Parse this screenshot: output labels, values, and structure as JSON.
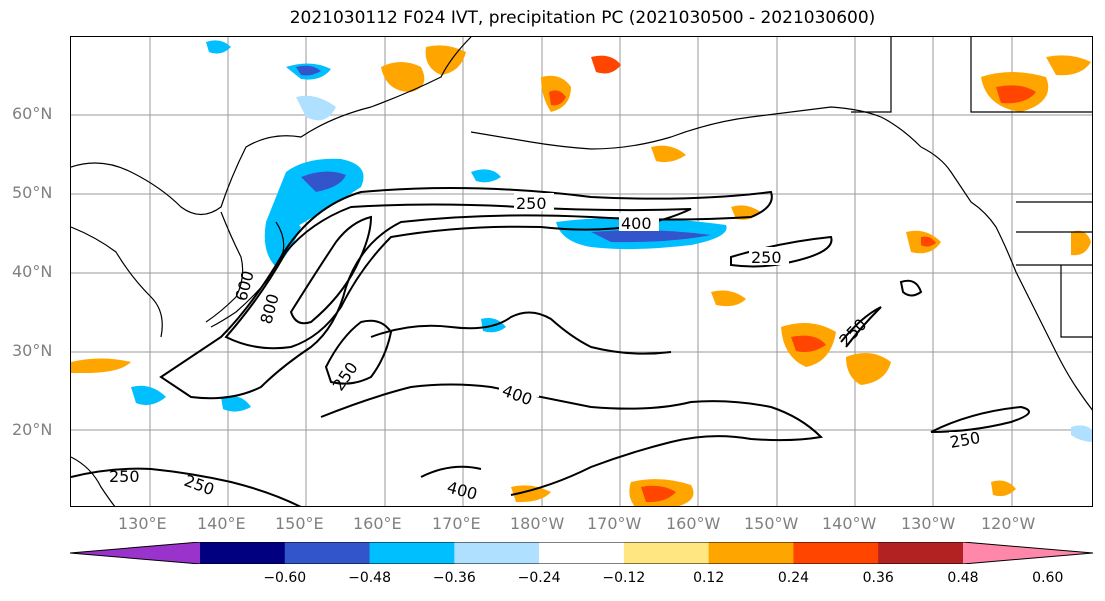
{
  "title": "2021030112 F024 IVT, precipitation PC (2021030500 - 2021030600)",
  "lat_labels": [
    "60°N",
    "50°N",
    "40°N",
    "30°N",
    "20°N"
  ],
  "lon_labels": [
    "130°E",
    "140°E",
    "150°E",
    "160°E",
    "170°E",
    "180°W",
    "170°W",
    "160°W",
    "150°W",
    "140°W",
    "130°W",
    "120°W"
  ],
  "contour_labels": [
    "250",
    "400",
    "250",
    "250",
    "400",
    "250",
    "250",
    "250",
    "400",
    "250",
    "600",
    "800"
  ],
  "colorbar": {
    "ticks": [
      "−0.60",
      "−0.48",
      "−0.36",
      "−0.24",
      "−0.12",
      "0.12",
      "0.24",
      "0.36",
      "0.48",
      "0.60"
    ],
    "colors": [
      "#9933cc",
      "#000080",
      "#3355cc",
      "#00bfff",
      "#b0e0ff",
      "#ffffff",
      "#ffe680",
      "#ffa500",
      "#ff4500",
      "#b22222",
      "#ff88aa"
    ]
  }
}
